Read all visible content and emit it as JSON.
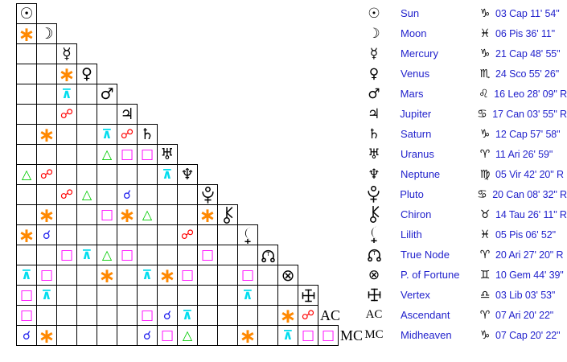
{
  "chart_data": {
    "type": "table",
    "description": "Astrological aspect grid (triangular matrix) with planet positions table",
    "aspect_types": {
      "conjunction": {
        "glyph": "☌",
        "color": "#2222EE"
      },
      "sextile": {
        "glyph": "∗",
        "color": "#FF8800"
      },
      "square": {
        "glyph": "□",
        "color": "#FF00FF"
      },
      "trine": {
        "glyph": "△",
        "color": "#00CC00"
      },
      "opposition": {
        "glyph": "☍",
        "color": "#FF0000"
      },
      "quincunx": {
        "glyph": "⊼",
        "color": "#00DDEE"
      }
    },
    "positions": [
      {
        "planet": "Sun",
        "icon": "sun-icon",
        "glyph": "☉",
        "render": "text",
        "sign": "Capricorn",
        "sign_glyph": "♑",
        "position": "03 Cap 11' 54\""
      },
      {
        "planet": "Moon",
        "icon": "moon-icon",
        "glyph": "☽",
        "render": "text",
        "sign": "Pisces",
        "sign_glyph": "♓",
        "position": "06 Pis 36' 11\""
      },
      {
        "planet": "Mercury",
        "icon": "mercury-icon",
        "glyph": "☿",
        "render": "text",
        "sign": "Capricorn",
        "sign_glyph": "♑",
        "position": "21 Cap 48' 55\""
      },
      {
        "planet": "Venus",
        "icon": "venus-icon",
        "glyph": "♀",
        "render": "text",
        "sign": "Scorpio",
        "sign_glyph": "♏",
        "position": "24 Sco 55' 26\""
      },
      {
        "planet": "Mars",
        "icon": "mars-icon",
        "glyph": "♂",
        "render": "text",
        "sign": "Leo",
        "sign_glyph": "♌",
        "position": "16 Leo 28' 09\" R"
      },
      {
        "planet": "Jupiter",
        "icon": "jupiter-icon",
        "glyph": "♃",
        "render": "text",
        "sign": "Cancer",
        "sign_glyph": "♋",
        "position": "17 Can 03' 55\" R"
      },
      {
        "planet": "Saturn",
        "icon": "saturn-icon",
        "glyph": "♄",
        "render": "text",
        "sign": "Capricorn",
        "sign_glyph": "♑",
        "position": "12 Cap 57' 58\""
      },
      {
        "planet": "Uranus",
        "icon": "uranus-icon",
        "glyph": "♅",
        "render": "text",
        "sign": "Aries",
        "sign_glyph": "♈",
        "position": "11 Ari 26' 59\""
      },
      {
        "planet": "Neptune",
        "icon": "neptune-icon",
        "glyph": "♆",
        "render": "text",
        "sign": "Virgo",
        "sign_glyph": "♍",
        "position": "05 Vir 42' 20\" R"
      },
      {
        "planet": "Pluto",
        "icon": "pluto-icon",
        "glyph": "♇",
        "render": "svg-pluto",
        "sign": "Cancer",
        "sign_glyph": "♋",
        "position": "20 Can 08' 32\" R"
      },
      {
        "planet": "Chiron",
        "icon": "chiron-icon",
        "glyph": "⚷",
        "render": "svg-chiron",
        "sign": "Taurus",
        "sign_glyph": "♉",
        "position": "14 Tau 26' 11\" R"
      },
      {
        "planet": "Lilith",
        "icon": "lilith-icon",
        "glyph": "⚸",
        "render": "svg-lilith",
        "sign": "Pisces",
        "sign_glyph": "♓",
        "position": "05 Pis 06' 52\""
      },
      {
        "planet": "True Node",
        "icon": "true-node-icon",
        "glyph": "☊",
        "render": "svg-truenode",
        "sign": "Aries",
        "sign_glyph": "♈",
        "position": "20 Ari 27' 20\" R"
      },
      {
        "planet": "P. of Fortune",
        "icon": "part-of-fortune-icon",
        "glyph": "⊗",
        "render": "text-big",
        "sign": "Gemini",
        "sign_glyph": "♊",
        "position": "10 Gem 44' 39\""
      },
      {
        "planet": "Vertex",
        "icon": "vertex-icon",
        "glyph": "☩",
        "render": "svg-vertex",
        "sign": "Libra",
        "sign_glyph": "♎",
        "position": "03 Lib 03' 53\""
      },
      {
        "planet": "Ascendant",
        "icon": "ascendant-label",
        "glyph": "AC",
        "render": "serif",
        "sign": "Aries",
        "sign_glyph": "♈",
        "position": "07 Ari 20' 22\""
      },
      {
        "planet": "Midheaven",
        "icon": "midheaven-label",
        "glyph": "MC",
        "render": "serif",
        "sign": "Capricorn",
        "sign_glyph": "♑",
        "position": "07 Cap 20' 22\""
      }
    ],
    "aspects": [
      {
        "row": "Moon",
        "col": "Sun",
        "type": "sextile"
      },
      {
        "row": "Venus",
        "col": "Mercury",
        "type": "sextile"
      },
      {
        "row": "Mars",
        "col": "Mercury",
        "type": "quincunx"
      },
      {
        "row": "Jupiter",
        "col": "Mercury",
        "type": "opposition"
      },
      {
        "row": "Saturn",
        "col": "Moon",
        "type": "sextile"
      },
      {
        "row": "Saturn",
        "col": "Mars",
        "type": "quincunx"
      },
      {
        "row": "Saturn",
        "col": "Jupiter",
        "type": "opposition"
      },
      {
        "row": "Uranus",
        "col": "Mars",
        "type": "trine"
      },
      {
        "row": "Uranus",
        "col": "Jupiter",
        "type": "square"
      },
      {
        "row": "Uranus",
        "col": "Saturn",
        "type": "square"
      },
      {
        "row": "Neptune",
        "col": "Sun",
        "type": "trine"
      },
      {
        "row": "Neptune",
        "col": "Moon",
        "type": "opposition"
      },
      {
        "row": "Neptune",
        "col": "Uranus",
        "type": "quincunx"
      },
      {
        "row": "Pluto",
        "col": "Mercury",
        "type": "opposition"
      },
      {
        "row": "Pluto",
        "col": "Venus",
        "type": "trine"
      },
      {
        "row": "Pluto",
        "col": "Jupiter",
        "type": "conjunction"
      },
      {
        "row": "Chiron",
        "col": "Moon",
        "type": "sextile"
      },
      {
        "row": "Chiron",
        "col": "Mars",
        "type": "square"
      },
      {
        "row": "Chiron",
        "col": "Jupiter",
        "type": "sextile"
      },
      {
        "row": "Chiron",
        "col": "Saturn",
        "type": "trine"
      },
      {
        "row": "Chiron",
        "col": "Pluto",
        "type": "sextile"
      },
      {
        "row": "Lilith",
        "col": "Sun",
        "type": "sextile"
      },
      {
        "row": "Lilith",
        "col": "Moon",
        "type": "conjunction"
      },
      {
        "row": "Lilith",
        "col": "Neptune",
        "type": "opposition"
      },
      {
        "row": "True Node",
        "col": "Mercury",
        "type": "square"
      },
      {
        "row": "True Node",
        "col": "Venus",
        "type": "quincunx"
      },
      {
        "row": "True Node",
        "col": "Mars",
        "type": "trine"
      },
      {
        "row": "True Node",
        "col": "Jupiter",
        "type": "square"
      },
      {
        "row": "True Node",
        "col": "Pluto",
        "type": "square"
      },
      {
        "row": "P. of Fortune",
        "col": "Sun",
        "type": "quincunx"
      },
      {
        "row": "P. of Fortune",
        "col": "Moon",
        "type": "square"
      },
      {
        "row": "P. of Fortune",
        "col": "Mars",
        "type": "sextile"
      },
      {
        "row": "P. of Fortune",
        "col": "Saturn",
        "type": "quincunx"
      },
      {
        "row": "P. of Fortune",
        "col": "Uranus",
        "type": "sextile"
      },
      {
        "row": "P. of Fortune",
        "col": "Neptune",
        "type": "square"
      },
      {
        "row": "P. of Fortune",
        "col": "Lilith",
        "type": "square"
      },
      {
        "row": "Vertex",
        "col": "Sun",
        "type": "square"
      },
      {
        "row": "Vertex",
        "col": "Moon",
        "type": "quincunx"
      },
      {
        "row": "Vertex",
        "col": "Lilith",
        "type": "quincunx"
      },
      {
        "row": "Ascendant",
        "col": "Sun",
        "type": "square"
      },
      {
        "row": "Ascendant",
        "col": "Saturn",
        "type": "square"
      },
      {
        "row": "Ascendant",
        "col": "Uranus",
        "type": "conjunction"
      },
      {
        "row": "Ascendant",
        "col": "Neptune",
        "type": "quincunx"
      },
      {
        "row": "Ascendant",
        "col": "P. of Fortune",
        "type": "sextile"
      },
      {
        "row": "Ascendant",
        "col": "Vertex",
        "type": "opposition"
      },
      {
        "row": "Midheaven",
        "col": "Sun",
        "type": "conjunction"
      },
      {
        "row": "Midheaven",
        "col": "Moon",
        "type": "sextile"
      },
      {
        "row": "Midheaven",
        "col": "Saturn",
        "type": "conjunction"
      },
      {
        "row": "Midheaven",
        "col": "Uranus",
        "type": "square"
      },
      {
        "row": "Midheaven",
        "col": "Neptune",
        "type": "trine"
      },
      {
        "row": "Midheaven",
        "col": "Lilith",
        "type": "sextile"
      },
      {
        "row": "Midheaven",
        "col": "P. of Fortune",
        "type": "quincunx"
      },
      {
        "row": "Midheaven",
        "col": "Vertex",
        "type": "square"
      },
      {
        "row": "Midheaven",
        "col": "Ascendant",
        "type": "square"
      }
    ]
  }
}
